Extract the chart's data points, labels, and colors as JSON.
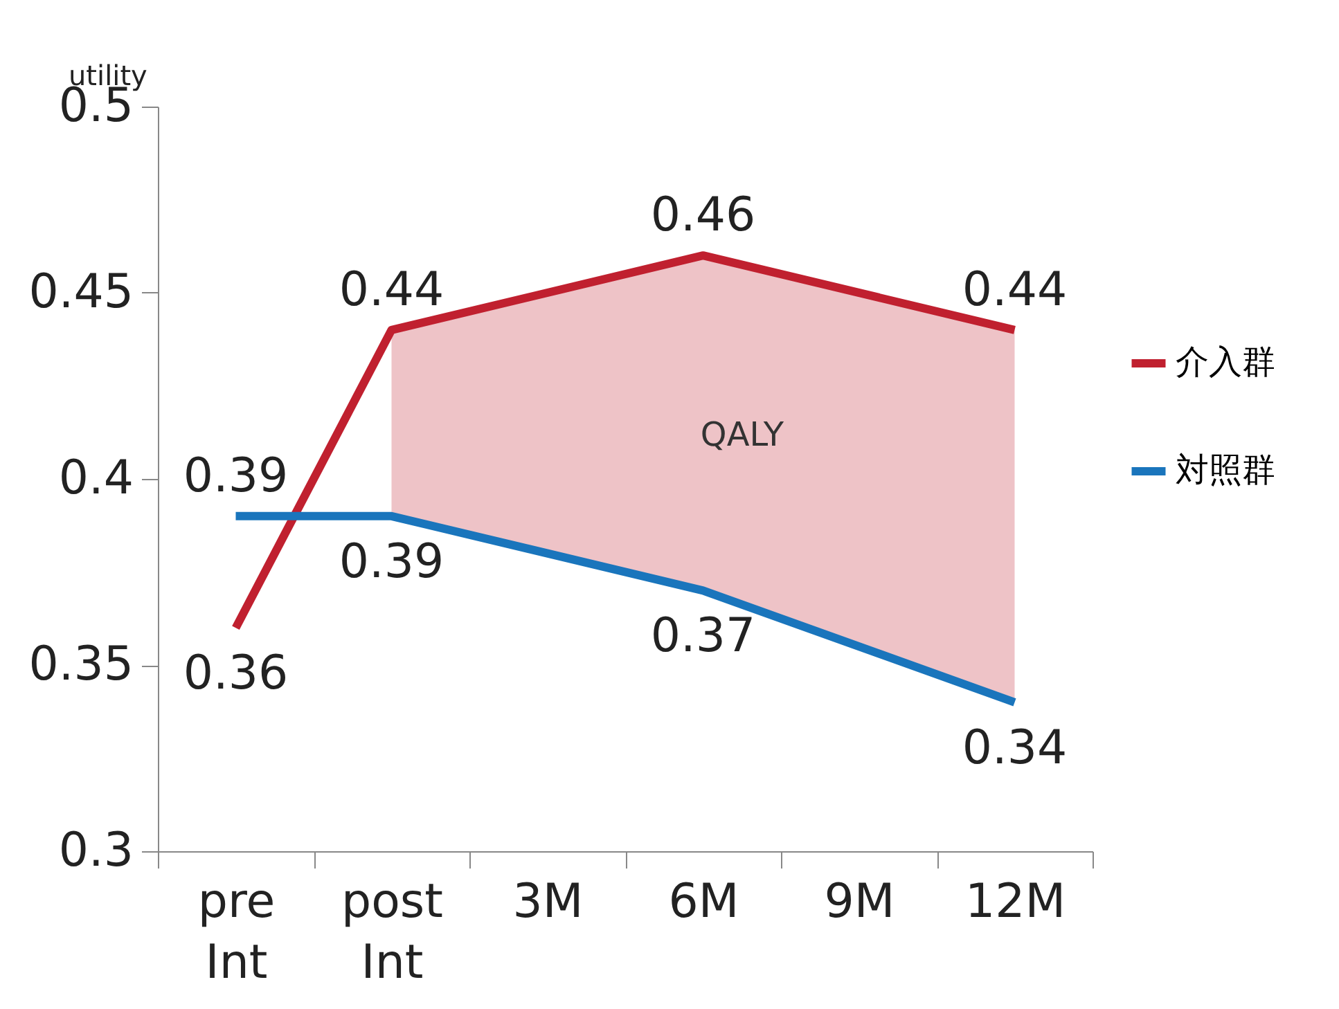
{
  "chart_data": {
    "type": "line",
    "ylabel": "utility",
    "categories": [
      "pre Int",
      "post Int",
      "3M",
      "6M",
      "9M",
      "12M"
    ],
    "series": [
      {
        "name": "介入群",
        "color": "#c0202f",
        "values": [
          0.36,
          0.44,
          null,
          0.46,
          null,
          0.44
        ],
        "lower": [
          null,
          0.39,
          null,
          0.37,
          null,
          0.34
        ],
        "upper": [
          null,
          0.44,
          null,
          0.46,
          null,
          0.44
        ]
      },
      {
        "name": "対照群",
        "color": "#1a75bc",
        "values": [
          0.39,
          0.39,
          null,
          0.37,
          null,
          0.34
        ]
      }
    ],
    "ylim": [
      0.3,
      0.5
    ],
    "yticks": [
      0.3,
      0.35,
      0.4,
      0.45,
      0.5
    ],
    "data_labels": true,
    "legend": "right",
    "grid": false,
    "line_style": "solid",
    "annotations": [
      "QALY"
    ]
  }
}
